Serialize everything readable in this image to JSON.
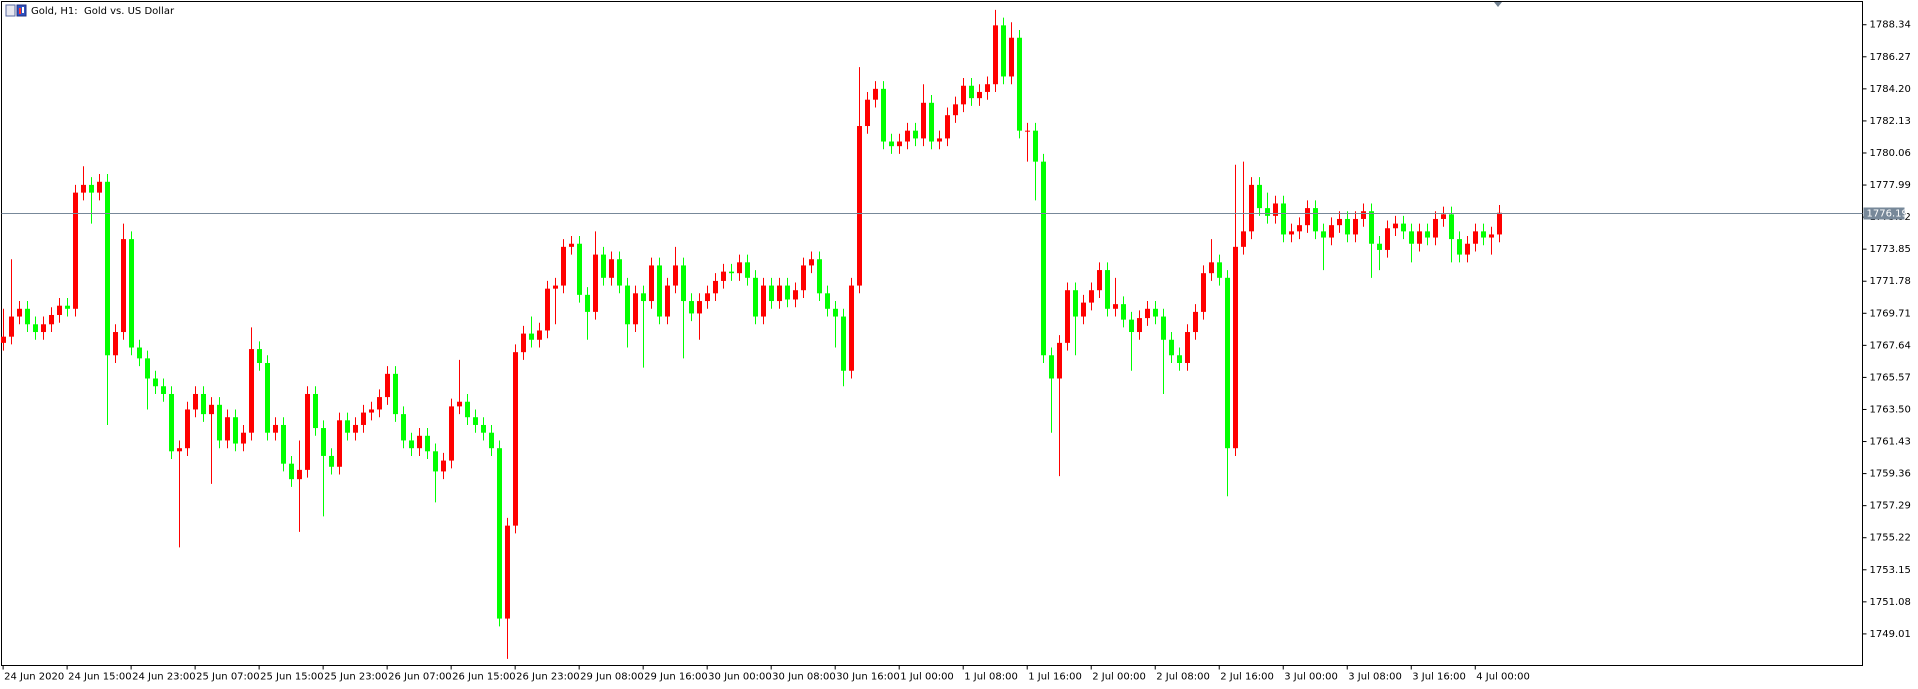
{
  "chart_data": {
    "type": "candlestick",
    "title": "Gold, H1:  Gold vs. US Dollar",
    "bull_color": "#ff0000",
    "bear_color": "#00ff00",
    "current_price": 1776.19,
    "ylim": [
      1746.97,
      1789.84
    ],
    "yticks": [
      1788.34,
      1786.27,
      {
        "value": 1784.2,
        "label": "1784.20"
      },
      1782.13,
      1780.06,
      1777.99,
      1775.92,
      1773.85,
      1771.78,
      1769.71,
      1767.64,
      1765.57,
      {
        "value": 1763.5,
        "label": "1763.50"
      },
      1761.43,
      1759.36,
      1757.29,
      1755.22,
      1753.15,
      1751.08,
      1749.01
    ],
    "xlim": [
      -0.2,
      232.4
    ],
    "xticks": [
      {
        "value": 0,
        "label": "24 Jun 2020"
      },
      {
        "value": 8,
        "label": "24 Jun 15:00"
      },
      {
        "value": 16,
        "label": "24 Jun 23:00"
      },
      {
        "value": 24,
        "label": "25 Jun 07:00"
      },
      {
        "value": 32,
        "label": "25 Jun 15:00"
      },
      {
        "value": 40,
        "label": "25 Jun 23:00"
      },
      {
        "value": 48,
        "label": "26 Jun 07:00"
      },
      {
        "value": 56,
        "label": "26 Jun 15:00"
      },
      {
        "value": 64,
        "label": "26 Jun 23:00"
      },
      {
        "value": 72,
        "label": "29 Jun 08:00"
      },
      {
        "value": 80,
        "label": "29 Jun 16:00"
      },
      {
        "value": 88,
        "label": "30 Jun 00:00"
      },
      {
        "value": 96,
        "label": "30 Jun 08:00"
      },
      {
        "value": 104,
        "label": "30 Jun 16:00"
      },
      {
        "value": 112,
        "label": "1 Jul 00:00"
      },
      {
        "value": 120,
        "label": "1 Jul 08:00"
      },
      {
        "value": 128,
        "label": "1 Jul 16:00"
      },
      {
        "value": 136,
        "label": "2 Jul 00:00"
      },
      {
        "value": 144,
        "label": "2 Jul 08:00"
      },
      {
        "value": 152,
        "label": "2 Jul 16:00"
      },
      {
        "value": 160,
        "label": "3 Jul 00:00"
      },
      {
        "value": 168,
        "label": "3 Jul 08:00"
      },
      {
        "value": 176,
        "label": "3 Jul 16:00"
      },
      {
        "value": 184,
        "label": "4 Jul 00:00"
      }
    ],
    "candles": [
      [
        1767.8,
        1770.0,
        1767.3,
        1768.2
      ],
      [
        1768.2,
        1773.2,
        1767.7,
        1769.5
      ],
      [
        1769.5,
        1770.5,
        1769.0,
        1770.0
      ],
      [
        1770.0,
        1770.5,
        1768.5,
        1769.0
      ],
      [
        1769.0,
        1769.5,
        1768.0,
        1768.5
      ],
      [
        1768.5,
        1769.5,
        1768.0,
        1769.0
      ],
      [
        1769.0,
        1770.1,
        1768.5,
        1769.6
      ],
      [
        1769.6,
        1770.7,
        1769.1,
        1770.2
      ],
      [
        1770.2,
        1770.7,
        1769.5,
        1770.0
      ],
      [
        1770.0,
        1778.0,
        1769.5,
        1777.5
      ],
      [
        1777.5,
        1779.2,
        1777.0,
        1778.0
      ],
      [
        1778.0,
        1778.5,
        1775.5,
        1777.5
      ],
      [
        1777.5,
        1778.7,
        1777.0,
        1778.2
      ],
      [
        1778.2,
        1778.7,
        1762.5,
        1767.0
      ],
      [
        1767.0,
        1769.0,
        1766.5,
        1768.5
      ],
      [
        1768.5,
        1775.5,
        1768.0,
        1774.5
      ],
      [
        1774.5,
        1775.0,
        1767.0,
        1767.5
      ],
      [
        1767.5,
        1768.0,
        1766.3,
        1766.8
      ],
      [
        1766.8,
        1767.3,
        1763.5,
        1765.5
      ],
      [
        1765.5,
        1766.0,
        1764.5,
        1765.0
      ],
      [
        1765.0,
        1765.5,
        1764.0,
        1764.5
      ],
      [
        1764.5,
        1765.0,
        1760.3,
        1760.8
      ],
      [
        1760.8,
        1761.5,
        1754.6,
        1761.0
      ],
      [
        1761.0,
        1764.0,
        1760.5,
        1763.5
      ],
      [
        1763.5,
        1765.0,
        1763.0,
        1764.5
      ],
      [
        1764.5,
        1765.0,
        1762.7,
        1763.2
      ],
      [
        1763.2,
        1764.3,
        1758.7,
        1763.8
      ],
      [
        1763.8,
        1764.3,
        1761.0,
        1761.5
      ],
      [
        1761.5,
        1763.5,
        1761.0,
        1763.0
      ],
      [
        1763.0,
        1763.5,
        1760.8,
        1761.3
      ],
      [
        1761.3,
        1762.5,
        1760.8,
        1762.0
      ],
      [
        1762.0,
        1768.8,
        1761.5,
        1767.4
      ],
      [
        1767.4,
        1767.9,
        1766.0,
        1766.5
      ],
      [
        1766.5,
        1767.0,
        1761.5,
        1762.0
      ],
      [
        1762.0,
        1763.0,
        1761.5,
        1762.5
      ],
      [
        1762.5,
        1763.0,
        1759.5,
        1760.0
      ],
      [
        1760.0,
        1760.5,
        1758.5,
        1759.0
      ],
      [
        1759.0,
        1761.5,
        1755.6,
        1759.6
      ],
      [
        1759.6,
        1765.0,
        1759.1,
        1764.5
      ],
      [
        1764.5,
        1765.0,
        1761.8,
        1762.3
      ],
      [
        1762.3,
        1762.8,
        1756.6,
        1760.5
      ],
      [
        1760.5,
        1761.0,
        1759.3,
        1759.8
      ],
      [
        1759.8,
        1763.3,
        1759.3,
        1762.8
      ],
      [
        1762.8,
        1763.3,
        1761.5,
        1762.0
      ],
      [
        1762.0,
        1763.0,
        1761.5,
        1762.5
      ],
      [
        1762.5,
        1763.8,
        1762.0,
        1763.3
      ],
      [
        1763.3,
        1764.0,
        1762.8,
        1763.5
      ],
      [
        1763.5,
        1764.8,
        1763.0,
        1764.3
      ],
      [
        1764.3,
        1766.3,
        1763.8,
        1765.8
      ],
      [
        1765.8,
        1766.3,
        1762.7,
        1763.2
      ],
      [
        1763.2,
        1763.7,
        1761.0,
        1761.5
      ],
      [
        1761.5,
        1762.0,
        1760.5,
        1761.0
      ],
      [
        1761.0,
        1762.3,
        1760.5,
        1761.8
      ],
      [
        1761.8,
        1762.3,
        1760.3,
        1760.8
      ],
      [
        1760.8,
        1761.3,
        1757.5,
        1759.5
      ],
      [
        1759.5,
        1760.7,
        1759.0,
        1760.2
      ],
      [
        1760.2,
        1764.2,
        1759.7,
        1763.7
      ],
      [
        1763.7,
        1766.7,
        1763.2,
        1764.0
      ],
      [
        1764.0,
        1764.5,
        1762.5,
        1763.0
      ],
      [
        1763.0,
        1763.5,
        1762.0,
        1762.5
      ],
      [
        1762.5,
        1763.0,
        1761.5,
        1762.0
      ],
      [
        1762.0,
        1762.5,
        1760.5,
        1761.0
      ],
      [
        1761.0,
        1761.5,
        1749.5,
        1750.0
      ],
      [
        1750.0,
        1756.5,
        1747.4,
        1756.0
      ],
      [
        1756.0,
        1767.7,
        1755.5,
        1767.2
      ],
      [
        1767.2,
        1768.9,
        1766.7,
        1768.4
      ],
      [
        1768.4,
        1769.5,
        1767.5,
        1768.0
      ],
      [
        1768.0,
        1769.1,
        1767.5,
        1768.6
      ],
      [
        1768.6,
        1771.8,
        1768.1,
        1771.3
      ],
      [
        1771.3,
        1772.0,
        1769.0,
        1771.5
      ],
      [
        1771.5,
        1774.5,
        1771.0,
        1774.0
      ],
      [
        1774.0,
        1774.7,
        1773.5,
        1774.2
      ],
      [
        1774.2,
        1774.7,
        1770.4,
        1770.9
      ],
      [
        1770.9,
        1771.4,
        1768.0,
        1769.8
      ],
      [
        1769.8,
        1775.0,
        1769.3,
        1773.5
      ],
      [
        1773.5,
        1774.0,
        1771.5,
        1772.0
      ],
      [
        1772.0,
        1773.7,
        1771.5,
        1773.2
      ],
      [
        1773.2,
        1773.7,
        1771.0,
        1771.5
      ],
      [
        1771.5,
        1772.0,
        1767.5,
        1769.0
      ],
      [
        1769.0,
        1771.5,
        1768.5,
        1771.0
      ],
      [
        1771.0,
        1771.5,
        1766.2,
        1770.5
      ],
      [
        1770.5,
        1773.3,
        1770.0,
        1772.8
      ],
      [
        1772.8,
        1773.3,
        1769.0,
        1769.5
      ],
      [
        1769.5,
        1772.0,
        1769.0,
        1771.5
      ],
      [
        1771.5,
        1774.0,
        1771.0,
        1772.8
      ],
      [
        1772.8,
        1773.3,
        1766.8,
        1770.5
      ],
      [
        1770.5,
        1771.0,
        1769.2,
        1769.7
      ],
      [
        1769.7,
        1771.0,
        1768.0,
        1770.5
      ],
      [
        1770.5,
        1771.5,
        1770.0,
        1771.0
      ],
      [
        1771.0,
        1772.3,
        1770.5,
        1771.8
      ],
      [
        1771.8,
        1772.9,
        1771.3,
        1772.4
      ],
      [
        1772.4,
        1772.9,
        1771.8,
        1772.3
      ],
      [
        1772.3,
        1773.5,
        1771.8,
        1773.0
      ],
      [
        1773.0,
        1773.5,
        1771.5,
        1772.0
      ],
      [
        1772.0,
        1772.5,
        1769.0,
        1769.5
      ],
      [
        1769.5,
        1772.0,
        1769.0,
        1771.5
      ],
      [
        1771.5,
        1772.0,
        1770.0,
        1770.5
      ],
      [
        1770.5,
        1772.0,
        1770.0,
        1771.5
      ],
      [
        1771.5,
        1772.0,
        1770.1,
        1770.6
      ],
      [
        1770.6,
        1771.7,
        1770.1,
        1771.2
      ],
      [
        1771.2,
        1773.3,
        1770.7,
        1772.8
      ],
      [
        1772.8,
        1773.7,
        1772.3,
        1773.2
      ],
      [
        1773.2,
        1773.7,
        1770.5,
        1771.0
      ],
      [
        1771.0,
        1771.5,
        1769.5,
        1770.0
      ],
      [
        1770.0,
        1770.5,
        1767.5,
        1769.5
      ],
      [
        1769.5,
        1770.0,
        1765.0,
        1766.0
      ],
      [
        1766.0,
        1772.0,
        1765.5,
        1771.5
      ],
      [
        1771.5,
        1785.6,
        1771.0,
        1781.8
      ],
      [
        1781.8,
        1784.0,
        1781.3,
        1783.5
      ],
      [
        1783.5,
        1784.7,
        1783.0,
        1784.2
      ],
      [
        1784.2,
        1784.7,
        1780.3,
        1780.8
      ],
      [
        1780.8,
        1781.3,
        1780.0,
        1780.5
      ],
      [
        1780.5,
        1781.3,
        1780.0,
        1780.8
      ],
      [
        1780.8,
        1782.0,
        1780.3,
        1781.5
      ],
      [
        1781.5,
        1782.0,
        1780.5,
        1781.0
      ],
      [
        1781.0,
        1784.5,
        1780.5,
        1783.3
      ],
      [
        1783.3,
        1783.8,
        1780.3,
        1780.8
      ],
      [
        1780.8,
        1781.5,
        1780.3,
        1781.0
      ],
      [
        1781.0,
        1783.0,
        1780.5,
        1782.5
      ],
      [
        1782.5,
        1783.7,
        1782.0,
        1783.2
      ],
      [
        1783.2,
        1784.9,
        1782.7,
        1784.4
      ],
      [
        1784.4,
        1784.9,
        1783.1,
        1783.6
      ],
      [
        1783.6,
        1784.5,
        1783.1,
        1784.0
      ],
      [
        1784.0,
        1785.0,
        1783.5,
        1784.5
      ],
      [
        1784.5,
        1789.3,
        1784.0,
        1788.3
      ],
      [
        1788.3,
        1788.8,
        1784.5,
        1785.0
      ],
      [
        1785.0,
        1788.5,
        1784.5,
        1787.5
      ],
      [
        1787.5,
        1788.0,
        1781.0,
        1781.5
      ],
      [
        1781.5,
        1782.0,
        1779.5,
        1781.5
      ],
      [
        1781.5,
        1782.0,
        1777.0,
        1779.5
      ],
      [
        1779.5,
        1780.0,
        1766.5,
        1767.0
      ],
      [
        1767.0,
        1767.5,
        1762.0,
        1765.5
      ],
      [
        1765.5,
        1768.3,
        1759.2,
        1767.8
      ],
      [
        1767.8,
        1771.7,
        1767.3,
        1771.2
      ],
      [
        1771.2,
        1771.7,
        1767.0,
        1769.5
      ],
      [
        1769.5,
        1770.9,
        1769.0,
        1770.4
      ],
      [
        1770.4,
        1771.7,
        1769.9,
        1771.2
      ],
      [
        1771.2,
        1773.0,
        1770.7,
        1772.5
      ],
      [
        1772.5,
        1773.0,
        1769.5,
        1770.0
      ],
      [
        1770.0,
        1772.0,
        1769.5,
        1770.3
      ],
      [
        1770.3,
        1770.8,
        1768.8,
        1769.3
      ],
      [
        1769.3,
        1769.8,
        1766.0,
        1768.5
      ],
      [
        1768.5,
        1769.9,
        1768.0,
        1769.4
      ],
      [
        1769.4,
        1770.5,
        1768.9,
        1770.0
      ],
      [
        1770.0,
        1770.5,
        1769.0,
        1769.5
      ],
      [
        1769.5,
        1770.0,
        1764.5,
        1768.0
      ],
      [
        1768.0,
        1768.5,
        1766.5,
        1767.0
      ],
      [
        1767.0,
        1767.5,
        1766.0,
        1766.5
      ],
      [
        1766.5,
        1769.0,
        1766.0,
        1768.5
      ],
      [
        1768.5,
        1770.3,
        1768.0,
        1769.8
      ],
      [
        1769.8,
        1772.8,
        1769.3,
        1772.3
      ],
      [
        1772.3,
        1774.5,
        1771.8,
        1773.0
      ],
      [
        1773.0,
        1773.5,
        1771.5,
        1772.0
      ],
      [
        1772.0,
        1772.5,
        1757.9,
        1761.0
      ],
      [
        1761.0,
        1779.3,
        1760.5,
        1774.0
      ],
      [
        1774.0,
        1779.5,
        1773.5,
        1775.0
      ],
      [
        1775.0,
        1778.5,
        1774.5,
        1778.0
      ],
      [
        1778.0,
        1778.5,
        1776.0,
        1776.5
      ],
      [
        1776.5,
        1777.5,
        1775.5,
        1776.0
      ],
      [
        1776.0,
        1777.3,
        1775.5,
        1776.8
      ],
      [
        1776.8,
        1777.3,
        1774.3,
        1774.8
      ],
      [
        1774.8,
        1775.5,
        1774.3,
        1775.0
      ],
      [
        1775.0,
        1775.9,
        1774.5,
        1775.4
      ],
      [
        1775.4,
        1777.0,
        1774.9,
        1776.5
      ],
      [
        1776.5,
        1777.0,
        1774.5,
        1775.0
      ],
      [
        1775.0,
        1775.5,
        1772.5,
        1774.6
      ],
      [
        1774.6,
        1775.9,
        1774.1,
        1775.4
      ],
      [
        1775.4,
        1776.3,
        1774.9,
        1775.8
      ],
      [
        1775.8,
        1776.3,
        1774.3,
        1774.8
      ],
      [
        1774.8,
        1776.3,
        1774.3,
        1775.8
      ],
      [
        1775.8,
        1776.8,
        1775.3,
        1776.3
      ],
      [
        1776.3,
        1776.8,
        1772.0,
        1774.2
      ],
      [
        1774.2,
        1774.7,
        1772.5,
        1773.8
      ],
      [
        1773.8,
        1775.7,
        1773.3,
        1775.2
      ],
      [
        1775.2,
        1776.0,
        1774.7,
        1775.5
      ],
      [
        1775.5,
        1776.0,
        1774.5,
        1775.0
      ],
      [
        1775.0,
        1775.5,
        1773.0,
        1774.2
      ],
      [
        1774.2,
        1775.5,
        1773.7,
        1775.0
      ],
      [
        1775.0,
        1775.5,
        1774.1,
        1774.6
      ],
      [
        1774.6,
        1776.3,
        1774.1,
        1775.8
      ],
      [
        1775.8,
        1776.6,
        1775.3,
        1776.1
      ],
      [
        1776.1,
        1776.6,
        1773.0,
        1774.5
      ],
      [
        1774.5,
        1775.0,
        1773.0,
        1773.5
      ],
      [
        1773.5,
        1774.7,
        1773.0,
        1774.2
      ],
      [
        1774.2,
        1775.5,
        1773.7,
        1775.0
      ],
      [
        1775.0,
        1775.5,
        1774.1,
        1774.6
      ],
      [
        1774.6,
        1775.3,
        1773.5,
        1774.8
      ],
      [
        1774.8,
        1776.7,
        1774.3,
        1776.2
      ]
    ]
  }
}
